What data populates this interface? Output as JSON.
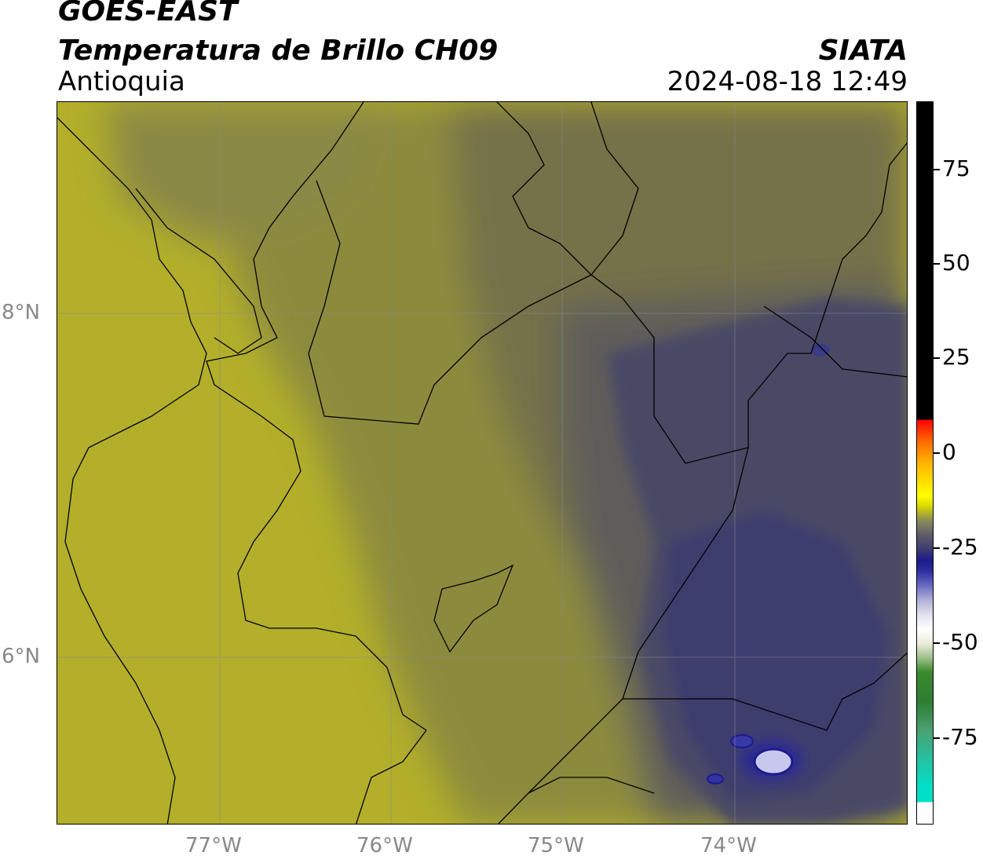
{
  "title": {
    "satellite": "GOES-EAST",
    "product": "Temperatura de Brillo CH09",
    "region": "Antioquia",
    "organization": "SIATA",
    "datetime": "2024-08-18 12:49"
  },
  "map": {
    "lat_labels": [
      "8°N",
      "6°N"
    ],
    "lon_labels": [
      "77°W",
      "76°W",
      "75°W",
      "74°W"
    ],
    "colors": {
      "warm_yellow": "#b4b028",
      "olive": "#8a8a40",
      "gray_olive": "#6e6e4e",
      "cold_blue": "#44446a",
      "deep_blue": "#1e1e8a"
    }
  },
  "colorbar": {
    "tick_labels": [
      "75",
      "50",
      "25",
      "0",
      "-25",
      "-50",
      "-75"
    ]
  }
}
